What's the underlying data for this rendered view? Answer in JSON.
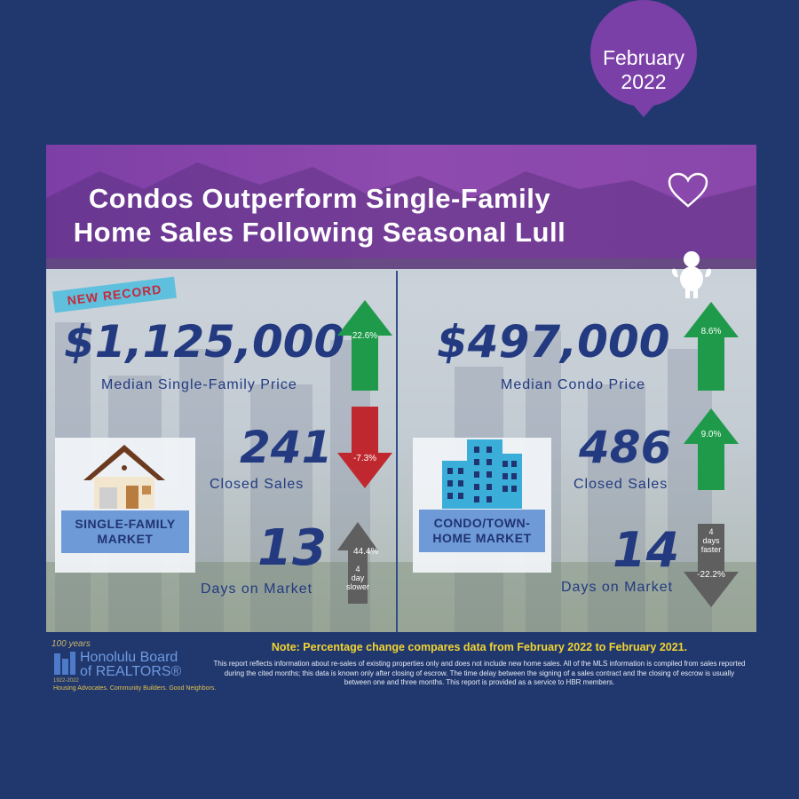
{
  "banner": {
    "title_line1": "Condos Outperform Single-Family",
    "title_line2": "Home Sales Following Seasonal Lull",
    "month": "February",
    "year": "2022"
  },
  "ribbon": {
    "label": "NEW RECORD"
  },
  "single_family": {
    "median_price": "$1,125,000",
    "median_price_label": "Median Single-Family Price",
    "median_price_change": "22.6%",
    "closed_sales": "241",
    "closed_sales_label": "Closed Sales",
    "closed_sales_change": "-7.3%",
    "days_on_market": "13",
    "days_on_market_label": "Days on Market",
    "days_on_market_change": "44.4%",
    "days_note_1": "4",
    "days_note_2": "day",
    "days_note_3": "slower",
    "market_label_1": "SINGLE-FAMILY",
    "market_label_2": "MARKET"
  },
  "condo": {
    "median_price": "$497,000",
    "median_price_label": "Median Condo Price",
    "median_price_change": "8.6%",
    "closed_sales": "486",
    "closed_sales_label": "Closed Sales",
    "closed_sales_change": "9.0%",
    "days_on_market": "14",
    "days_on_market_label": "Days on Market",
    "days_on_market_change": "-22.2%",
    "days_note_1": "4",
    "days_note_2": "days",
    "days_note_3": "faster",
    "market_label_1": "CONDO/TOWN-",
    "market_label_2": "HOME MARKET"
  },
  "footer": {
    "note": "Note: Percentage change compares data from February 2022 to February 2021.",
    "disclaimer": "This report reflects information about re-sales of existing properties only and does not include new home sales. All of the MLS information is compiled from sales reported during the cited months; this data is known only after closing of escrow. The time delay between the signing of a sales contract and the closing of escrow is usually between one and three months. This report is provided as a service to HBR members.",
    "logo_years": "100 years",
    "logo_line1": "Honolulu Board",
    "logo_line2": "of REALTORS®",
    "logo_dates": "1922-2022",
    "logo_tagline": "Housing Advocates. Community Builders. Good Neighbors."
  },
  "colors": {
    "background": "#21386e",
    "banner": "#8a47ab",
    "up_arrow": "#1f9a4a",
    "down_arrow": "#c0282f",
    "neutral_arrow": "#5f5f5f",
    "number_text": "#233a80",
    "note_text": "#f2d532"
  }
}
